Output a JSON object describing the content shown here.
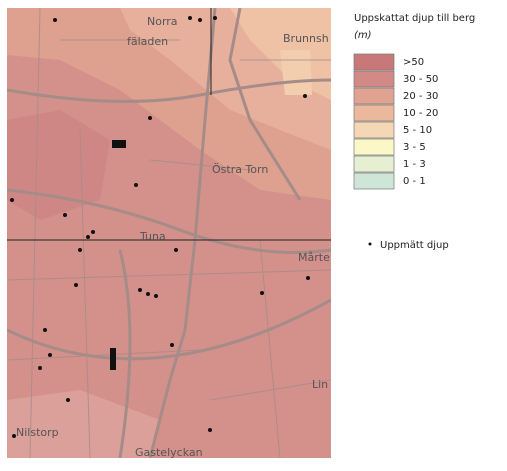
{
  "legend": {
    "title": "Uppskattat djup till berg",
    "unit": "(m)",
    "classes": [
      ">50",
      "30 - 50",
      "20 - 30",
      "10 - 20",
      "5 - 10",
      "3 - 5",
      "1 - 3",
      "0 - 1"
    ],
    "point_label": "Uppmätt djup"
  },
  "map": {
    "labels": [
      "Norra",
      "fäladen",
      "Brunnsh",
      "Östra Torn",
      "Tuna",
      "Mårte",
      "Lin",
      "Nilstorp",
      "Gastelyckan"
    ]
  }
}
